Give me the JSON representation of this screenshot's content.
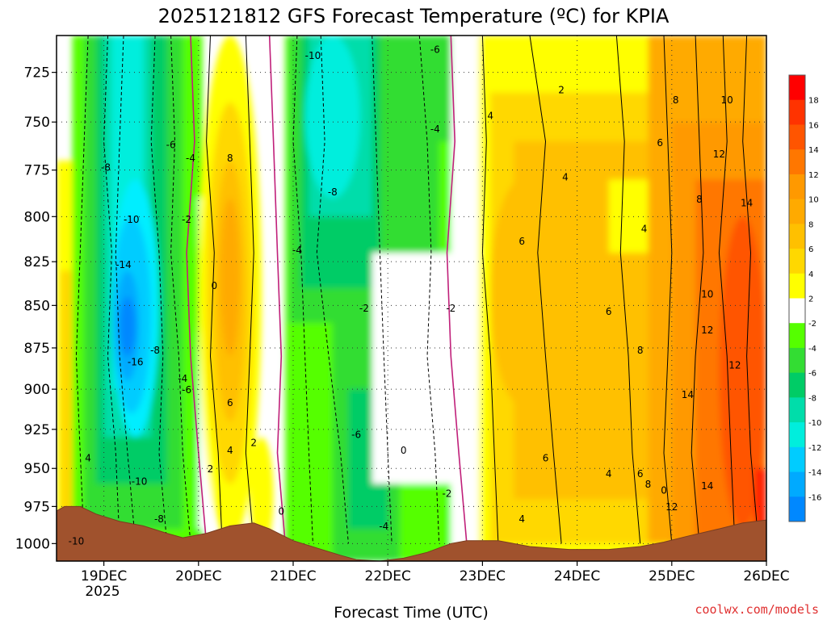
{
  "chart_data": {
    "type": "heatmap",
    "title": "2025121812 GFS Forecast Temperature (ºC) for KPIA",
    "xlabel": "Forecast Time (UTC)",
    "ylabel": "",
    "credit": "coolwx.com/models",
    "x_ticks": [
      "19DEC",
      "20DEC",
      "21DEC",
      "22DEC",
      "23DEC",
      "24DEC",
      "25DEC",
      "26DEC"
    ],
    "x_year_label": "2025",
    "y_ticks": [
      725,
      750,
      775,
      800,
      825,
      850,
      875,
      900,
      925,
      950,
      975,
      1000
    ],
    "ylim": [
      1012,
      707
    ],
    "xlim_hours_from_19DEC": [
      -12,
      168
    ],
    "y_scale": "log-pressure",
    "grid": "dotted",
    "colorbar": {
      "ticks": [
        18,
        16,
        14,
        12,
        10,
        8,
        6,
        4,
        2,
        -2,
        -4,
        -6,
        -8,
        -10,
        -12,
        -14,
        -16
      ],
      "colors": [
        "#ff0000",
        "#ff3300",
        "#ff5500",
        "#ff7700",
        "#ff9900",
        "#ffaa00",
        "#ffc000",
        "#ffd800",
        "#ffff00",
        "#ffffff",
        "#55ff00",
        "#33dd33",
        "#00cc66",
        "#00ddaa",
        "#00eedd",
        "#00ccff",
        "#00aaff",
        "#0088ff"
      ]
    },
    "contour_labels": [
      {
        "text": "-10",
        "x": -7,
        "p": 1000
      },
      {
        "text": "-8",
        "x": 0.5,
        "p": 775
      },
      {
        "text": "-10",
        "x": 7,
        "p": 803
      },
      {
        "text": "-14",
        "x": 5,
        "p": 828
      },
      {
        "text": "-16",
        "x": 8,
        "p": 885
      },
      {
        "text": "-8",
        "x": 13,
        "p": 878
      },
      {
        "text": "-6",
        "x": 17,
        "p": 763
      },
      {
        "text": "-4",
        "x": 22,
        "p": 770
      },
      {
        "text": "-2",
        "x": 21,
        "p": 803
      },
      {
        "text": "-4",
        "x": 20,
        "p": 895
      },
      {
        "text": "-6",
        "x": 21,
        "p": 902
      },
      {
        "text": "4",
        "x": -4,
        "p": 945
      },
      {
        "text": "-10",
        "x": 9,
        "p": 960
      },
      {
        "text": "-8",
        "x": 14,
        "p": 985
      },
      {
        "text": "0",
        "x": 28,
        "p": 840
      },
      {
        "text": "8",
        "x": 32,
        "p": 770
      },
      {
        "text": "6",
        "x": 32,
        "p": 910
      },
      {
        "text": "4",
        "x": 32,
        "p": 940
      },
      {
        "text": "2",
        "x": 38,
        "p": 935
      },
      {
        "text": "2",
        "x": 27,
        "p": 952
      },
      {
        "text": "0",
        "x": 45,
        "p": 980
      },
      {
        "text": "-10",
        "x": 53,
        "p": 718
      },
      {
        "text": "-4",
        "x": 49,
        "p": 820
      },
      {
        "text": "-8",
        "x": 58,
        "p": 788
      },
      {
        "text": "-6",
        "x": 84,
        "p": 715
      },
      {
        "text": "-4",
        "x": 84,
        "p": 755
      },
      {
        "text": "-2",
        "x": 66,
        "p": 853
      },
      {
        "text": "-2",
        "x": 88,
        "p": 853
      },
      {
        "text": "-6",
        "x": 64,
        "p": 930
      },
      {
        "text": "0",
        "x": 76,
        "p": 940
      },
      {
        "text": "-2",
        "x": 87,
        "p": 968
      },
      {
        "text": "-4",
        "x": 71,
        "p": 990
      },
      {
        "text": "2",
        "x": 116,
        "p": 735
      },
      {
        "text": "4",
        "x": 98,
        "p": 748
      },
      {
        "text": "4",
        "x": 117,
        "p": 780
      },
      {
        "text": "6",
        "x": 106,
        "p": 815
      },
      {
        "text": "4",
        "x": 137,
        "p": 808
      },
      {
        "text": "6",
        "x": 141,
        "p": 762
      },
      {
        "text": "6",
        "x": 128,
        "p": 855
      },
      {
        "text": "6",
        "x": 112,
        "p": 945
      },
      {
        "text": "4",
        "x": 106,
        "p": 985
      },
      {
        "text": "4",
        "x": 128,
        "p": 955
      },
      {
        "text": "6",
        "x": 136,
        "p": 955
      },
      {
        "text": "8",
        "x": 145,
        "p": 740
      },
      {
        "text": "10",
        "x": 158,
        "p": 740
      },
      {
        "text": "8",
        "x": 151,
        "p": 792
      },
      {
        "text": "8",
        "x": 136,
        "p": 878
      },
      {
        "text": "10",
        "x": 153,
        "p": 845
      },
      {
        "text": "12",
        "x": 156,
        "p": 768
      },
      {
        "text": "14",
        "x": 163,
        "p": 794
      },
      {
        "text": "12",
        "x": 153,
        "p": 866
      },
      {
        "text": "12",
        "x": 160,
        "p": 887
      },
      {
        "text": "14",
        "x": 148,
        "p": 905
      },
      {
        "text": "8",
        "x": 138,
        "p": 962
      },
      {
        "text": "0",
        "x": 142,
        "p": 966
      },
      {
        "text": "12",
        "x": 144,
        "p": 977
      },
      {
        "text": "14",
        "x": 153,
        "p": 963
      }
    ]
  }
}
